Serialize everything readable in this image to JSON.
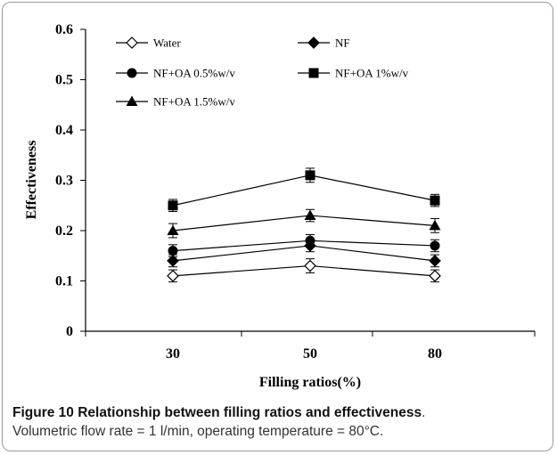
{
  "chart_data": {
    "type": "line",
    "categories": [
      "30",
      "50",
      "80"
    ],
    "xlabel": "Filling ratios(%)",
    "ylabel": "Effectiveness",
    "ylim": [
      0,
      0.6
    ],
    "yticks": [
      "0",
      "0.1",
      "0.2",
      "0.3",
      "0.4",
      "0.5",
      "0.6"
    ],
    "grid": false,
    "legend_position": "top-left",
    "series": [
      {
        "name": "Water",
        "marker": "diamond-open",
        "values": [
          0.11,
          0.13,
          0.11
        ],
        "errors": [
          0.012,
          0.014,
          0.012
        ]
      },
      {
        "name": "NF",
        "marker": "diamond-filled",
        "values": [
          0.14,
          0.17,
          0.14
        ],
        "errors": [
          0.012,
          0.012,
          0.012
        ]
      },
      {
        "name": "NF+OA 0.5%w/v",
        "marker": "circle-filled",
        "values": [
          0.16,
          0.18,
          0.17
        ],
        "errors": [
          0.012,
          0.012,
          0.012
        ]
      },
      {
        "name": "NF+OA 1%w/v",
        "marker": "square-filled",
        "values": [
          0.25,
          0.31,
          0.26
        ],
        "errors": [
          0.012,
          0.014,
          0.012
        ]
      },
      {
        "name": "NF+OA 1.5%w/v",
        "marker": "triangle-filled",
        "values": [
          0.2,
          0.23,
          0.21
        ],
        "errors": [
          0.014,
          0.012,
          0.014
        ]
      }
    ]
  },
  "caption": {
    "label": "Figure 10",
    "title": "Relationship between filling ratios and effectiveness",
    "title_end": ".",
    "text": "Volumetric flow rate = 1 l/min, operating temperature = 80°C."
  }
}
